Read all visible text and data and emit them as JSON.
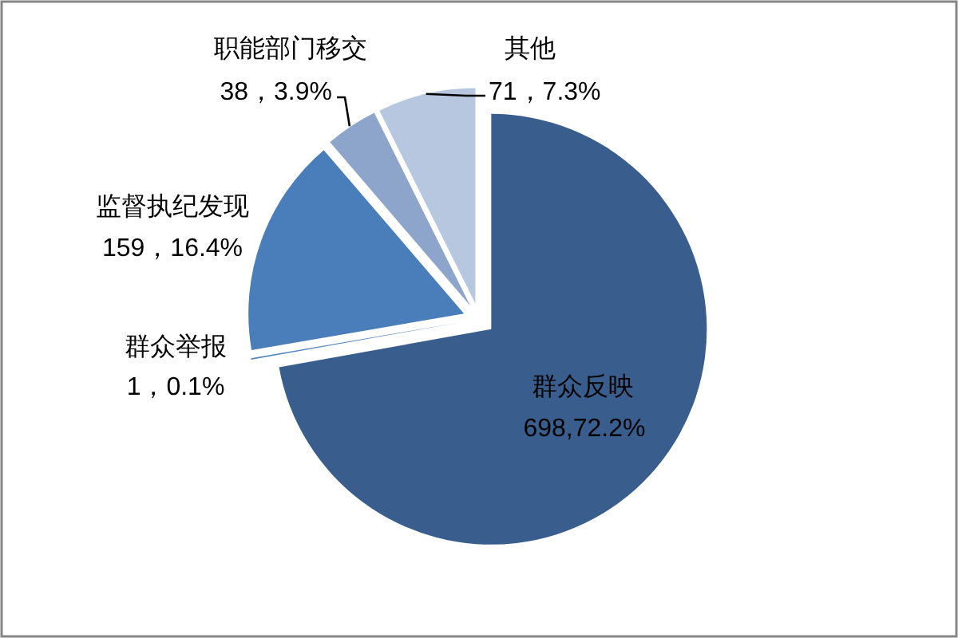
{
  "chart_data": {
    "type": "pie",
    "categories": [
      "群众反映",
      "群众举报",
      "监督执纪发现",
      "职能部门移交",
      "其他"
    ],
    "values": [
      698,
      1,
      159,
      38,
      71
    ],
    "value_labels": [
      "698,72.2%",
      "1，0.1%",
      "159，16.4%",
      "38，3.9%",
      "71，7.3%"
    ],
    "colors": [
      "#395d8c",
      "#5082be",
      "#4a7ebb",
      "#8ea5cb",
      "#b8c7e0"
    ]
  }
}
